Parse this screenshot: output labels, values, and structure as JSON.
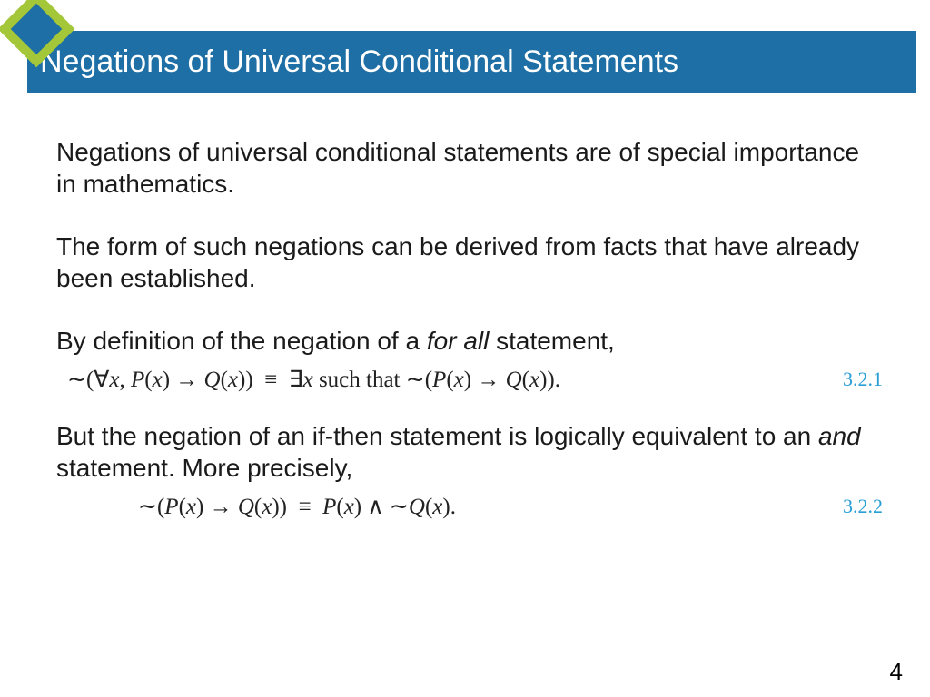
{
  "header": {
    "title": "Negations of Universal Conditional Statements",
    "title_bg": "#1d6fa5",
    "title_color": "#ffffff",
    "diamond_outer": "#a4c639",
    "diamond_inner": "#1d6fa5"
  },
  "body": {
    "p1": "Negations of universal conditional statements are of special importance in mathematics.",
    "p2": "The form of such negations can be derived from facts that have already been established.",
    "p3_prefix": "By definition of the negation of a ",
    "p3_ital": "for all",
    "p3_suffix": " statement,",
    "eq1_text": "∼(∀x, P(x) → Q(x))  ≡  ∃x such that ∼(P(x) → Q(x)).",
    "eq1_num": "3.2.1",
    "p4_prefix": "But the negation of an if-then statement is logically equivalent to an ",
    "p4_ital": "and",
    "p4_suffix": " statement. More precisely,",
    "eq2_text": "∼(P(x) → Q(x))  ≡  P(x) ∧ ∼Q(x).",
    "eq2_num": "3.2.2",
    "eq_num_color": "#2a9fd6"
  },
  "footer": {
    "page_number": "4"
  }
}
